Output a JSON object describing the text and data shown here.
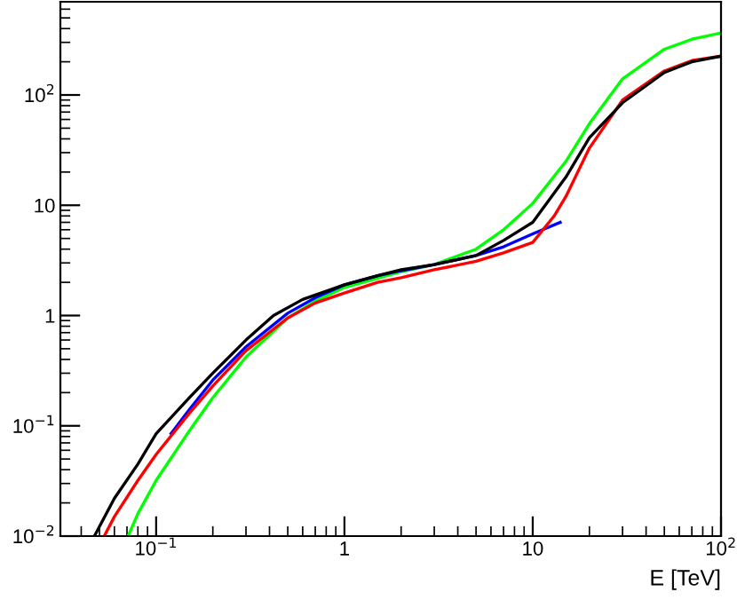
{
  "chart_data": {
    "type": "line",
    "xlabel": "E [TeV]",
    "log": "xy",
    "xlim": [
      0.031,
      100
    ],
    "ylim": [
      0.01,
      700
    ],
    "xticks": [
      {
        "value": 0.1,
        "label": "10$^{−1}$"
      },
      1,
      10,
      {
        "value": 100,
        "label": "10$^{2}$"
      }
    ],
    "yticks": [
      {
        "value": 0.01,
        "label": "10$^{−2}$"
      },
      {
        "value": 0.1,
        "label": "10$^{−1}$"
      },
      1,
      10,
      {
        "value": 100,
        "label": "10$^{2}$"
      }
    ],
    "grid": false,
    "legend": false,
    "marker": "none",
    "line_style": "solid",
    "series": [
      {
        "color": "#00ff00",
        "x": [
          0.071,
          0.08,
          0.1,
          0.15,
          0.2,
          0.3,
          0.5,
          0.7,
          1,
          2,
          3,
          5,
          7,
          10,
          15,
          20,
          30,
          50,
          70,
          100
        ],
        "values": [
          0.01,
          0.016,
          0.032,
          0.09,
          0.18,
          0.42,
          0.95,
          1.35,
          1.8,
          2.5,
          2.9,
          4,
          6,
          10.4,
          25,
          55,
          140,
          260,
          320,
          365
        ]
      },
      {
        "color": "#0000ff",
        "x": [
          0.12,
          0.15,
          0.2,
          0.3,
          0.5,
          0.7,
          1,
          1.5,
          2,
          3,
          5,
          7,
          10,
          14
        ],
        "values": [
          0.085,
          0.14,
          0.26,
          0.52,
          1.05,
          1.45,
          1.9,
          2.3,
          2.55,
          2.9,
          3.5,
          4.2,
          5.5,
          7
        ]
      },
      {
        "color": "#ff0000",
        "x": [
          0.053,
          0.06,
          0.08,
          0.1,
          0.15,
          0.2,
          0.3,
          0.5,
          0.7,
          1,
          1.5,
          2,
          3,
          5,
          7,
          10,
          13,
          15,
          20,
          30,
          50,
          70,
          100
        ],
        "values": [
          0.01,
          0.015,
          0.032,
          0.055,
          0.13,
          0.23,
          0.48,
          0.95,
          1.3,
          1.6,
          2,
          2.2,
          2.6,
          3.1,
          3.7,
          4.6,
          8,
          12,
          33,
          90,
          165,
          205,
          225
        ]
      },
      {
        "color": "#000000",
        "x": [
          0.047,
          0.06,
          0.08,
          0.1,
          0.15,
          0.2,
          0.3,
          0.42,
          0.6,
          1,
          1.5,
          2,
          3,
          5,
          7,
          10,
          15,
          20,
          30,
          50,
          70,
          100
        ],
        "values": [
          0.01,
          0.022,
          0.045,
          0.085,
          0.18,
          0.3,
          0.6,
          1,
          1.4,
          1.9,
          2.3,
          2.6,
          2.9,
          3.5,
          4.8,
          7,
          18,
          41,
          85,
          160,
          200,
          225
        ]
      }
    ]
  }
}
